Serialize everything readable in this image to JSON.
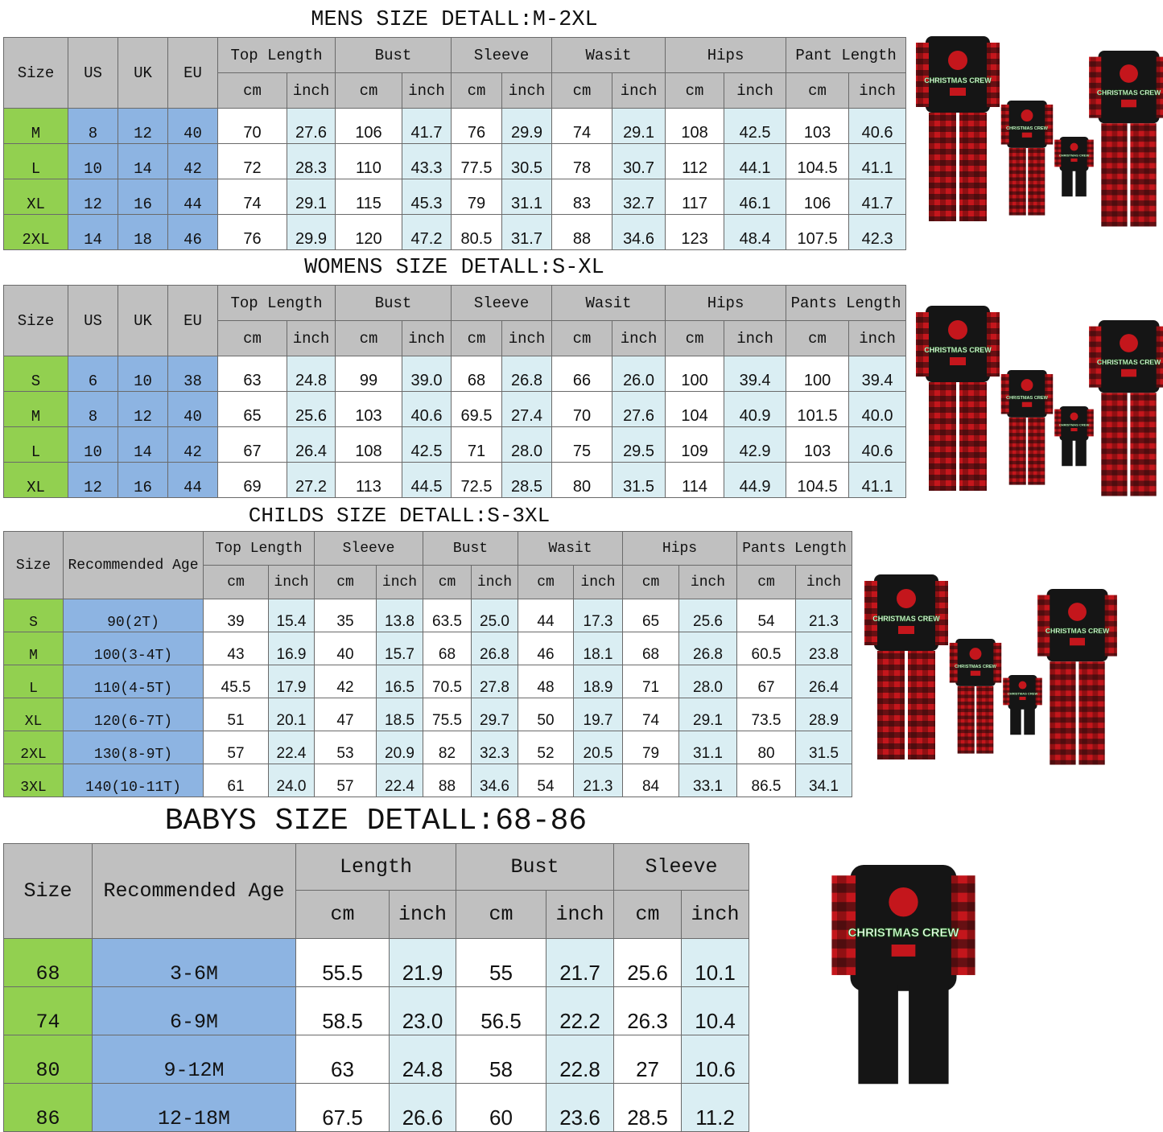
{
  "colors": {
    "header": "#c0c0c0",
    "size_col": "#92d050",
    "alt_col": "#8db4e2",
    "inch_col": "#daeef3"
  },
  "product_images": {
    "icon": "family-christmas-pajamas",
    "print_text": "CHRISTMAS CREW"
  },
  "tables": [
    {
      "title": "MENS SIZE DETALL:M-2XL",
      "fixed_headers": [
        "Size",
        "US",
        "UK",
        "EU"
      ],
      "groups": [
        "Top Length",
        "Bust",
        "Sleeve",
        "Wasit",
        "Hips",
        "Pant Length"
      ],
      "units": [
        "cm",
        "inch"
      ],
      "rows": [
        [
          "M",
          "8",
          "12",
          "40",
          "70",
          "27.6",
          "106",
          "41.7",
          "76",
          "29.9",
          "74",
          "29.1",
          "108",
          "42.5",
          "103",
          "40.6"
        ],
        [
          "L",
          "10",
          "14",
          "42",
          "72",
          "28.3",
          "110",
          "43.3",
          "77.5",
          "30.5",
          "78",
          "30.7",
          "112",
          "44.1",
          "104.5",
          "41.1"
        ],
        [
          "XL",
          "12",
          "16",
          "44",
          "74",
          "29.1",
          "115",
          "45.3",
          "79",
          "31.1",
          "83",
          "32.7",
          "117",
          "46.1",
          "106",
          "41.7"
        ],
        [
          "2XL",
          "14",
          "18",
          "46",
          "76",
          "29.9",
          "120",
          "47.2",
          "80.5",
          "31.7",
          "88",
          "34.6",
          "123",
          "48.4",
          "107.5",
          "42.3"
        ]
      ]
    },
    {
      "title": "WOMENS SIZE DETALL:S-XL",
      "fixed_headers": [
        "Size",
        "US",
        "UK",
        "EU"
      ],
      "groups": [
        "Top Length",
        "Bust",
        "Sleeve",
        "Wasit",
        "Hips",
        "Pants Length"
      ],
      "units": [
        "cm",
        "inch"
      ],
      "rows": [
        [
          "S",
          "6",
          "10",
          "38",
          "63",
          "24.8",
          "99",
          "39.0",
          "68",
          "26.8",
          "66",
          "26.0",
          "100",
          "39.4",
          "100",
          "39.4"
        ],
        [
          "M",
          "8",
          "12",
          "40",
          "65",
          "25.6",
          "103",
          "40.6",
          "69.5",
          "27.4",
          "70",
          "27.6",
          "104",
          "40.9",
          "101.5",
          "40.0"
        ],
        [
          "L",
          "10",
          "14",
          "42",
          "67",
          "26.4",
          "108",
          "42.5",
          "71",
          "28.0",
          "75",
          "29.5",
          "109",
          "42.9",
          "103",
          "40.6"
        ],
        [
          "XL",
          "12",
          "16",
          "44",
          "69",
          "27.2",
          "113",
          "44.5",
          "72.5",
          "28.5",
          "80",
          "31.5",
          "114",
          "44.9",
          "104.5",
          "41.1"
        ]
      ]
    },
    {
      "title": "CHILDS SIZE DETALL:S-3XL",
      "fixed_headers": [
        "Size",
        "Recommended Age"
      ],
      "groups": [
        "Top Length",
        "Sleeve",
        "Bust",
        "Wasit",
        "Hips",
        "Pants Length"
      ],
      "units": [
        "cm",
        "inch"
      ],
      "rows": [
        [
          "S",
          "90(2T)",
          "39",
          "15.4",
          "35",
          "13.8",
          "63.5",
          "25.0",
          "44",
          "17.3",
          "65",
          "25.6",
          "54",
          "21.3"
        ],
        [
          "M",
          "100(3-4T)",
          "43",
          "16.9",
          "40",
          "15.7",
          "68",
          "26.8",
          "46",
          "18.1",
          "68",
          "26.8",
          "60.5",
          "23.8"
        ],
        [
          "L",
          "110(4-5T)",
          "45.5",
          "17.9",
          "42",
          "16.5",
          "70.5",
          "27.8",
          "48",
          "18.9",
          "71",
          "28.0",
          "67",
          "26.4"
        ],
        [
          "XL",
          "120(6-7T)",
          "51",
          "20.1",
          "47",
          "18.5",
          "75.5",
          "29.7",
          "50",
          "19.7",
          "74",
          "29.1",
          "73.5",
          "28.9"
        ],
        [
          "2XL",
          "130(8-9T)",
          "57",
          "22.4",
          "53",
          "20.9",
          "82",
          "32.3",
          "52",
          "20.5",
          "79",
          "31.1",
          "80",
          "31.5"
        ],
        [
          "3XL",
          "140(10-11T)",
          "61",
          "24.0",
          "57",
          "22.4",
          "88",
          "34.6",
          "54",
          "21.3",
          "84",
          "33.1",
          "86.5",
          "34.1"
        ]
      ]
    },
    {
      "title": "BABYS SIZE DETALL:68-86",
      "fixed_headers": [
        "Size",
        "Recommended Age"
      ],
      "groups": [
        "Length",
        "Bust",
        "Sleeve"
      ],
      "units": [
        "cm",
        "inch"
      ],
      "rows": [
        [
          "68",
          "3-6M",
          "55.5",
          "21.9",
          "55",
          "21.7",
          "25.6",
          "10.1"
        ],
        [
          "74",
          "6-9M",
          "58.5",
          "23.0",
          "56.5",
          "22.2",
          "26.3",
          "10.4"
        ],
        [
          "80",
          "9-12M",
          "63",
          "24.8",
          "58",
          "22.8",
          "27",
          "10.6"
        ],
        [
          "86",
          "12-18M",
          "67.5",
          "26.6",
          "60",
          "23.6",
          "28.5",
          "11.2"
        ]
      ]
    }
  ]
}
